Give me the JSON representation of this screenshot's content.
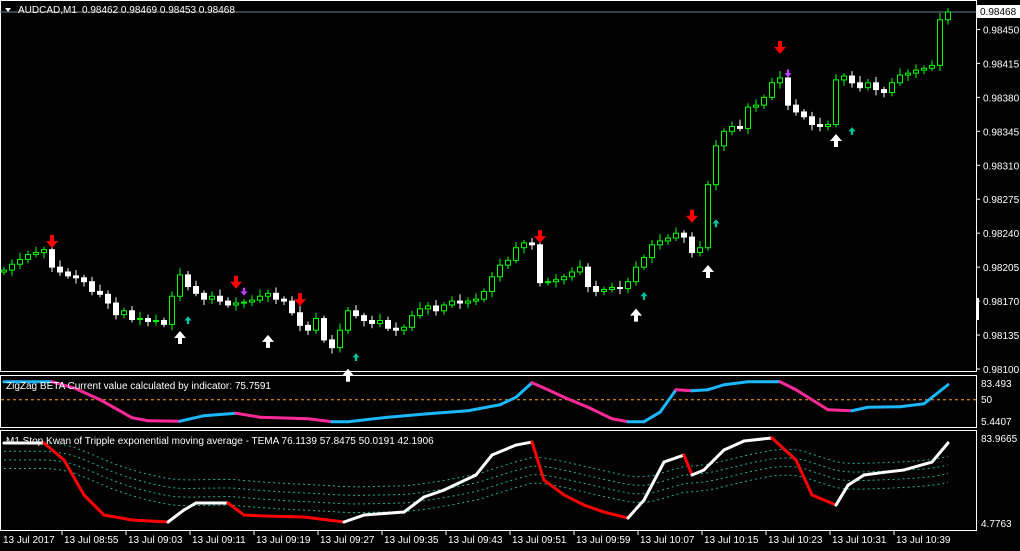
{
  "header": {
    "symbol": "AUDCAD,M1",
    "ohlc": "0.98462 0.98469 0.98453 0.98468"
  },
  "colors": {
    "bg": "#000000",
    "frame": "#ffffff",
    "bull": "#00ff00",
    "bear": "#ffffff",
    "sell_arrow": "#ff0000",
    "buy_arrow": "#ffffff",
    "small_up": "#00c0a0",
    "small_down": "#c040ff",
    "zz_up": "#1ab8ff",
    "zz_down": "#ff2a9a",
    "tema_up": "#ffffff",
    "tema_down": "#ff0000",
    "bands": "#20b0a0",
    "level": "#ffa500"
  },
  "price_axis": {
    "current": "0.98468",
    "ticks": [
      "0.98450",
      "0.98415",
      "0.98380",
      "0.98345",
      "0.98310",
      "0.98275",
      "0.98240",
      "0.98205",
      "0.98170",
      "0.98135",
      "0.98100"
    ],
    "range": [
      0.981,
      0.98468
    ]
  },
  "time_axis": [
    "13 Jul 2017",
    "13 Jul 08:55",
    "13 Jul 09:03",
    "13 Jul 09:11",
    "13 Jul 09:19",
    "13 Jul 09:27",
    "13 Jul 09:35",
    "13 Jul 09:43",
    "13 Jul 09:51",
    "13 Jul 09:59",
    "13 Jul 10:07",
    "13 Jul 10:15",
    "13 Jul 10:23",
    "13 Jul 10:31",
    "13 Jul 10:39"
  ],
  "closes": [
    0.98202,
    0.98208,
    0.98213,
    0.98218,
    0.9822,
    0.98223,
    0.98205,
    0.982,
    0.98196,
    0.98194,
    0.9819,
    0.9818,
    0.98177,
    0.98168,
    0.98156,
    0.9816,
    0.98151,
    0.98152,
    0.98149,
    0.9815,
    0.98146,
    0.98175,
    0.98197,
    0.98185,
    0.98178,
    0.98172,
    0.98175,
    0.9817,
    0.98166,
    0.98168,
    0.98169,
    0.98171,
    0.98175,
    0.98178,
    0.98172,
    0.9817,
    0.98158,
    0.98145,
    0.9814,
    0.98152,
    0.9813,
    0.98122,
    0.9814,
    0.9816,
    0.98155,
    0.9815,
    0.98147,
    0.9815,
    0.98142,
    0.9814,
    0.98143,
    0.98155,
    0.98162,
    0.98165,
    0.9816,
    0.98166,
    0.9817,
    0.98168,
    0.9817,
    0.98172,
    0.9818,
    0.98195,
    0.98207,
    0.98212,
    0.98225,
    0.9823,
    0.98228,
    0.98189,
    0.9819,
    0.98192,
    0.98195,
    0.982,
    0.98205,
    0.98185,
    0.9818,
    0.98182,
    0.98184,
    0.98183,
    0.9819,
    0.98205,
    0.98215,
    0.98228,
    0.98232,
    0.98235,
    0.9824,
    0.98236,
    0.9822,
    0.98225,
    0.9829,
    0.9833,
    0.98345,
    0.9835,
    0.98348,
    0.9837,
    0.98372,
    0.9838,
    0.98395,
    0.984,
    0.98372,
    0.98365,
    0.9836,
    0.98352,
    0.9835,
    0.98352,
    0.98398,
    0.98402,
    0.98395,
    0.9839,
    0.98395,
    0.98388,
    0.98385,
    0.98395,
    0.98403,
    0.98405,
    0.98408,
    0.9841,
    0.98413,
    0.9846,
    0.98468
  ],
  "arrows": [
    {
      "bar": 6,
      "price": 0.98232,
      "type": "sell"
    },
    {
      "bar": 29,
      "price": 0.9819,
      "type": "sell"
    },
    {
      "bar": 37,
      "price": 0.98172,
      "type": "sell"
    },
    {
      "bar": 67,
      "price": 0.98237,
      "type": "sell"
    },
    {
      "bar": 86,
      "price": 0.98258,
      "type": "sell"
    },
    {
      "bar": 97,
      "price": 0.98432,
      "type": "sell"
    },
    {
      "bar": 22,
      "price": 0.98132,
      "type": "buy"
    },
    {
      "bar": 33,
      "price": 0.98128,
      "type": "buy"
    },
    {
      "bar": 43,
      "price": 0.98093,
      "type": "buy"
    },
    {
      "bar": 79,
      "price": 0.98155,
      "type": "buy"
    },
    {
      "bar": 88,
      "price": 0.982,
      "type": "buy"
    },
    {
      "bar": 104,
      "price": 0.98335,
      "type": "buy"
    },
    {
      "bar": 23,
      "price": 0.9815,
      "type": "small_up"
    },
    {
      "bar": 44,
      "price": 0.98112,
      "type": "small_up"
    },
    {
      "bar": 80,
      "price": 0.98175,
      "type": "small_up"
    },
    {
      "bar": 89,
      "price": 0.9825,
      "type": "small_up"
    },
    {
      "bar": 106,
      "price": 0.98345,
      "type": "small_up"
    },
    {
      "bar": 30,
      "price": 0.9818,
      "type": "small_down"
    },
    {
      "bar": 98,
      "price": 0.98405,
      "type": "small_down"
    }
  ],
  "zigzag": {
    "title": "ZigZag BETA Current value calculated by indicator: 75.7591",
    "ticks": [
      "83.493",
      "50",
      "5.4407"
    ],
    "range": [
      5.4407,
      83.493
    ],
    "level": 50,
    "points": [
      [
        0,
        86
      ],
      [
        6,
        86
      ],
      [
        9,
        72
      ],
      [
        12,
        50
      ],
      [
        14,
        32
      ],
      [
        16,
        14
      ],
      [
        18,
        8
      ],
      [
        22,
        7
      ],
      [
        25,
        18
      ],
      [
        29,
        23
      ],
      [
        32,
        15
      ],
      [
        36,
        13
      ],
      [
        38,
        12
      ],
      [
        41,
        6
      ],
      [
        43,
        6
      ],
      [
        48,
        15
      ],
      [
        53,
        22
      ],
      [
        58,
        28
      ],
      [
        62,
        40
      ],
      [
        64,
        55
      ],
      [
        66,
        84
      ],
      [
        68,
        70
      ],
      [
        70,
        55
      ],
      [
        73,
        35
      ],
      [
        76,
        12
      ],
      [
        78,
        6
      ],
      [
        80,
        6
      ],
      [
        82,
        25
      ],
      [
        84,
        70
      ],
      [
        86,
        68
      ],
      [
        88,
        70
      ],
      [
        90,
        80
      ],
      [
        93,
        86
      ],
      [
        97,
        86
      ],
      [
        99,
        70
      ],
      [
        101,
        50
      ],
      [
        103,
        30
      ],
      [
        106,
        28
      ],
      [
        108,
        35
      ],
      [
        112,
        36
      ],
      [
        115,
        42
      ],
      [
        118,
        80
      ]
    ]
  },
  "tema": {
    "title": "M1 Stop Kwan of Tripple exponential moving average - TEMA 76.1139 57.8475 50.0191 42.1906",
    "ticks": [
      "83.9665",
      "4.7763"
    ],
    "range": [
      4.7763,
      83.9665
    ],
    "points": [
      [
        0,
        79.3
      ],
      [
        5,
        79.3
      ],
      [
        7.5,
        63.5
      ],
      [
        10,
        30.9
      ],
      [
        12.5,
        12.2
      ],
      [
        16,
        7.6
      ],
      [
        20.5,
        5.7
      ],
      [
        22.5,
        16.9
      ],
      [
        24,
        23.4
      ],
      [
        28,
        23.4
      ],
      [
        30,
        12.2
      ],
      [
        32.5,
        11.3
      ],
      [
        37.5,
        10.4
      ],
      [
        42.5,
        5.7
      ],
      [
        45,
        12.2
      ],
      [
        50,
        15
      ],
      [
        52.5,
        29
      ],
      [
        55,
        35.5
      ],
      [
        59,
        49.5
      ],
      [
        61,
        68.1
      ],
      [
        64,
        77.4
      ],
      [
        66,
        80.2
      ],
      [
        67.5,
        44.8
      ],
      [
        70,
        30.9
      ],
      [
        72.5,
        21.5
      ],
      [
        75,
        15
      ],
      [
        78,
        9.4
      ],
      [
        80,
        26.2
      ],
      [
        82.5,
        61.6
      ],
      [
        85,
        68.1
      ],
      [
        86,
        49.5
      ],
      [
        87.5,
        54.2
      ],
      [
        90,
        72.8
      ],
      [
        92.5,
        81.2
      ],
      [
        96,
        84
      ],
      [
        99,
        63.5
      ],
      [
        101,
        30.9
      ],
      [
        104,
        21.5
      ],
      [
        105.5,
        40
      ],
      [
        107.5,
        49.5
      ],
      [
        110,
        52
      ],
      [
        112.5,
        54.2
      ],
      [
        116,
        61.6
      ],
      [
        118,
        79.3
      ]
    ]
  }
}
